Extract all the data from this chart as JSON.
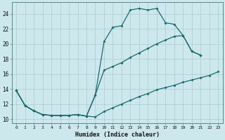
{
  "xlabel": "Humidex (Indice chaleur)",
  "background_color": "#cce8ec",
  "grid_color": "#aacccc",
  "line_color": "#1a6b6b",
  "xlim": [
    -0.5,
    23.5
  ],
  "ylim": [
    9.5,
    25.5
  ],
  "series1_x": [
    0,
    1,
    2,
    3,
    4,
    5,
    6,
    7,
    8,
    9,
    10,
    11,
    12,
    13,
    14,
    15,
    16,
    17,
    18,
    19,
    20,
    21
  ],
  "series1_y": [
    13.8,
    11.8,
    11.1,
    10.6,
    10.5,
    10.5,
    10.5,
    10.6,
    10.4,
    13.2,
    20.3,
    22.2,
    22.4,
    24.5,
    24.7,
    24.5,
    24.7,
    22.8,
    22.6,
    21.1,
    19.0,
    18.5
  ],
  "series2_x": [
    0,
    1,
    2,
    3,
    4,
    5,
    6,
    7,
    8,
    9,
    10,
    11,
    12,
    13,
    14,
    15,
    16,
    17,
    18,
    19,
    20,
    21
  ],
  "series2_y": [
    13.8,
    11.8,
    11.1,
    10.6,
    10.5,
    10.5,
    10.5,
    10.6,
    10.4,
    13.2,
    16.5,
    17.0,
    17.5,
    18.2,
    18.8,
    19.4,
    20.0,
    20.5,
    21.0,
    21.1,
    19.0,
    18.5
  ],
  "series3_x": [
    0,
    1,
    2,
    3,
    4,
    5,
    6,
    7,
    8,
    9,
    10,
    11,
    12,
    13,
    14,
    15,
    16,
    17,
    18,
    19,
    20,
    21,
    22,
    23
  ],
  "series3_y": [
    13.8,
    11.8,
    11.1,
    10.6,
    10.5,
    10.5,
    10.5,
    10.6,
    10.4,
    10.3,
    11.0,
    11.5,
    12.0,
    12.5,
    13.0,
    13.4,
    13.9,
    14.2,
    14.5,
    14.9,
    15.2,
    15.5,
    15.8,
    16.3
  ],
  "ytick_values": [
    10,
    12,
    14,
    16,
    18,
    20,
    22,
    24
  ]
}
